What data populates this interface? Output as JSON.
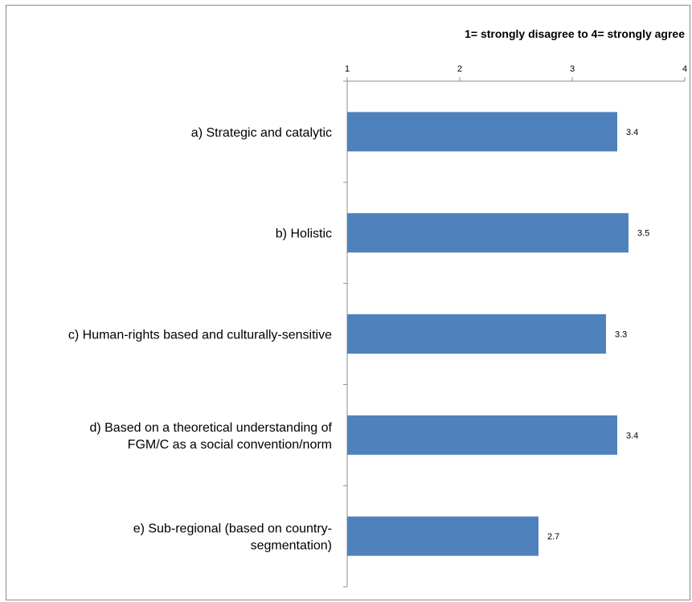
{
  "chart_data": {
    "type": "bar",
    "orientation": "horizontal",
    "title": "1= strongly disagree to 4= strongly agree",
    "categories": [
      [
        "a) Strategic and catalytic"
      ],
      [
        "b) Holistic"
      ],
      [
        "c) Human-rights based and culturally-sensitive"
      ],
      [
        "d) Based on a theoretical understanding of",
        "FGM/C as a social convention/norm"
      ],
      [
        "e) Sub-regional (based on country-",
        "segmentation)"
      ]
    ],
    "values": [
      3.4,
      3.5,
      3.3,
      3.4,
      2.7
    ],
    "value_labels": [
      "3.4",
      "3.5",
      "3.3",
      "3.4",
      "2.7"
    ],
    "xlim": [
      1,
      4
    ],
    "x_ticks": [
      "1",
      "2",
      "3",
      "4"
    ],
    "axis_position": "top",
    "grid": false,
    "bar_color": "#4f81bd"
  }
}
